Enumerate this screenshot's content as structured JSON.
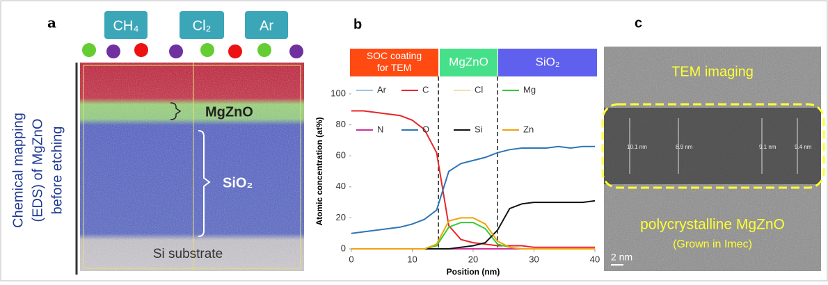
{
  "panel_a": {
    "label": "a",
    "gases": [
      "CH₄",
      "Cl₂",
      "Ar"
    ],
    "side_label": [
      "Chemical mapping",
      "(EDS) of MgZnO",
      "before etching"
    ],
    "layers": [
      "MgZnO",
      "SiO₂",
      "Si substrate"
    ]
  },
  "chart_data": {
    "type": "line",
    "panel_label": "b",
    "headers": [
      [
        "SOC coating",
        "for TEM"
      ],
      [
        "MgZnO"
      ],
      [
        "SiO₂"
      ]
    ],
    "x_label": "Position (nm)",
    "y_label": "Atomic concentration (at%)",
    "x": [
      0,
      2,
      4,
      6,
      8,
      10,
      12,
      14,
      16,
      18,
      20,
      22,
      24,
      26,
      28,
      30,
      32,
      34,
      36,
      38,
      40
    ],
    "xlim": [
      0,
      40
    ],
    "xticks": [
      0,
      10,
      20,
      30,
      40
    ],
    "ylim": [
      0,
      100
    ],
    "yticks": [
      0,
      20,
      40,
      60,
      80,
      100
    ],
    "boundaries": [
      14.3,
      24
    ],
    "series": [
      {
        "name": "Ar",
        "color": "#9dc3e6",
        "values": [
          0,
          0,
          0,
          0,
          0,
          0,
          0,
          0,
          0,
          0,
          0,
          0,
          0,
          0,
          0,
          0,
          0,
          0,
          0,
          0,
          0
        ]
      },
      {
        "name": "C",
        "color": "#e8262a",
        "values": [
          89,
          89,
          88,
          87,
          86,
          83,
          77,
          62,
          15,
          6,
          4,
          3,
          2,
          2,
          2,
          1,
          1,
          1,
          1,
          1,
          1
        ]
      },
      {
        "name": "Cl",
        "color": "#f5deb3",
        "values": [
          0,
          0,
          0,
          0,
          0,
          0,
          0,
          0,
          0,
          0,
          0,
          0,
          0,
          0,
          0,
          0,
          0,
          0,
          0,
          0,
          0
        ]
      },
      {
        "name": "Mg",
        "color": "#33cc33",
        "values": [
          0,
          0,
          0,
          0,
          0,
          0,
          0,
          2,
          14,
          17,
          17,
          13,
          3,
          1,
          0,
          0,
          0,
          0,
          0,
          0,
          0
        ]
      },
      {
        "name": "N",
        "color": "#cc3399",
        "values": [
          0,
          0,
          0,
          0,
          0,
          0,
          0,
          0,
          0,
          0,
          0,
          0,
          0,
          0,
          0,
          0,
          0,
          0,
          0,
          0,
          0
        ]
      },
      {
        "name": "O",
        "color": "#2e75b6",
        "values": [
          10,
          11,
          12,
          13,
          14,
          16,
          19,
          25,
          50,
          55,
          57,
          59,
          62,
          64,
          65,
          65,
          65,
          66,
          65,
          66,
          66
        ]
      },
      {
        "name": "Si",
        "color": "#111111",
        "values": [
          0,
          0,
          0,
          0,
          0,
          0,
          0,
          0,
          0,
          1,
          2,
          4,
          12,
          26,
          29,
          30,
          30,
          30,
          30,
          30,
          31
        ]
      },
      {
        "name": "Zn",
        "color": "#f0a30a",
        "values": [
          0,
          0,
          0,
          0,
          0,
          0,
          0,
          3,
          18,
          20,
          20,
          16,
          5,
          1,
          0,
          0,
          0,
          0,
          0,
          0,
          0
        ]
      }
    ]
  },
  "panel_c": {
    "label": "c",
    "title": "TEM imaging",
    "caption": "polycrystalline MgZnO",
    "note": "(Grown in Imec)",
    "scale": "2 nm",
    "measurements": [
      "10.1 nm",
      "8.9 nm",
      "9.1 nm",
      "9.4 nm"
    ]
  }
}
